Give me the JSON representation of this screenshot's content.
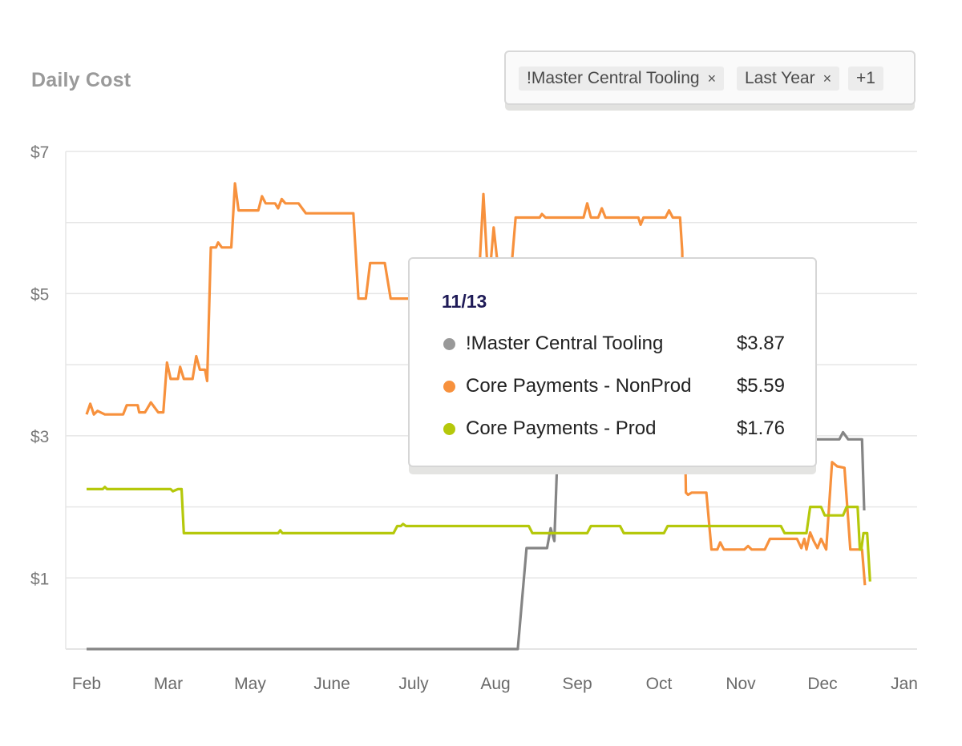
{
  "title": "Daily Cost",
  "filters": {
    "chips": [
      {
        "label": "!Master Central Tooling",
        "remove": "×"
      },
      {
        "label": "Last Year",
        "remove": "×"
      },
      {
        "label": "+1"
      }
    ]
  },
  "tooltip": {
    "date": "11/13",
    "rows": [
      {
        "name": "!Master Central Tooling",
        "value": "$3.87",
        "color": "#999999"
      },
      {
        "name": "Core Payments - NonProd",
        "value": "$5.59",
        "color": "#f7913d"
      },
      {
        "name": "Core Payments - Prod",
        "value": "$1.76",
        "color": "#b5c80b"
      }
    ]
  },
  "chart_data": {
    "type": "line",
    "title": "Daily Cost",
    "xlabel": "",
    "ylabel": "",
    "x_tick_labels": [
      "Feb",
      "Mar",
      "May",
      "June",
      "July",
      "Aug",
      "Sep",
      "Oct",
      "Nov",
      "Dec",
      "Jan"
    ],
    "y_tick_labels": [
      "$7",
      "$5",
      "$3",
      "$1"
    ],
    "y_ticks": [
      7,
      5,
      3,
      1
    ],
    "ylim": [
      0,
      7
    ],
    "xlim": [
      0,
      11
    ],
    "grid": true,
    "series": [
      {
        "name": "!Master Central Tooling",
        "color": "#858585",
        "points": [
          [
            0,
            0
          ],
          [
            5.9,
            0
          ],
          [
            6.02,
            1.42
          ],
          [
            6.3,
            1.42
          ],
          [
            6.35,
            1.7
          ],
          [
            6.4,
            1.52
          ],
          [
            6.45,
            2.95
          ],
          [
            10.3,
            2.95
          ],
          [
            10.35,
            3.05
          ],
          [
            10.42,
            2.95
          ],
          [
            10.61,
            2.95
          ],
          [
            10.64,
            1.95
          ]
        ]
      },
      {
        "name": "Core Payments - NonProd",
        "color": "#f7913d",
        "points": [
          [
            0,
            3.3
          ],
          [
            0.05,
            3.45
          ],
          [
            0.1,
            3.3
          ],
          [
            0.15,
            3.35
          ],
          [
            0.25,
            3.3
          ],
          [
            0.5,
            3.3
          ],
          [
            0.55,
            3.43
          ],
          [
            0.7,
            3.43
          ],
          [
            0.72,
            3.33
          ],
          [
            0.8,
            3.33
          ],
          [
            0.88,
            3.47
          ],
          [
            0.98,
            3.33
          ],
          [
            1.05,
            3.33
          ],
          [
            1.1,
            4.03
          ],
          [
            1.15,
            3.8
          ],
          [
            1.25,
            3.8
          ],
          [
            1.28,
            3.97
          ],
          [
            1.33,
            3.8
          ],
          [
            1.45,
            3.8
          ],
          [
            1.5,
            4.12
          ],
          [
            1.55,
            3.93
          ],
          [
            1.62,
            3.93
          ],
          [
            1.65,
            3.77
          ],
          [
            1.7,
            5.65
          ],
          [
            1.77,
            5.65
          ],
          [
            1.8,
            5.72
          ],
          [
            1.85,
            5.65
          ],
          [
            1.98,
            5.65
          ],
          [
            2.03,
            6.55
          ],
          [
            2.08,
            6.17
          ],
          [
            2.35,
            6.17
          ],
          [
            2.4,
            6.37
          ],
          [
            2.45,
            6.27
          ],
          [
            2.58,
            6.27
          ],
          [
            2.62,
            6.2
          ],
          [
            2.67,
            6.33
          ],
          [
            2.72,
            6.27
          ],
          [
            2.9,
            6.27
          ],
          [
            3.0,
            6.13
          ],
          [
            3.65,
            6.13
          ],
          [
            3.72,
            4.93
          ],
          [
            3.82,
            4.93
          ],
          [
            3.88,
            5.43
          ],
          [
            4.08,
            5.43
          ],
          [
            4.16,
            4.93
          ],
          [
            4.25,
            4.93
          ],
          [
            5.3,
            4.93
          ],
          [
            5.38,
            5.45
          ],
          [
            5.43,
            6.4
          ],
          [
            5.48,
            5.45
          ],
          [
            5.53,
            5.45
          ],
          [
            5.57,
            5.93
          ],
          [
            5.62,
            5.45
          ],
          [
            5.82,
            5.45
          ],
          [
            5.87,
            6.07
          ],
          [
            6.2,
            6.07
          ],
          [
            6.23,
            6.12
          ],
          [
            6.28,
            6.07
          ],
          [
            6.8,
            6.07
          ],
          [
            6.85,
            6.27
          ],
          [
            6.9,
            6.07
          ],
          [
            7.0,
            6.07
          ],
          [
            7.05,
            6.2
          ],
          [
            7.1,
            6.07
          ],
          [
            7.55,
            6.07
          ],
          [
            7.58,
            5.97
          ],
          [
            7.62,
            6.07
          ],
          [
            7.92,
            6.07
          ],
          [
            7.97,
            6.17
          ],
          [
            8.02,
            6.07
          ],
          [
            8.12,
            6.07
          ],
          [
            8.15,
            5.6
          ],
          [
            8.2,
            2.2
          ],
          [
            8.23,
            2.17
          ],
          [
            8.28,
            2.2
          ],
          [
            8.48,
            2.2
          ],
          [
            8.55,
            1.4
          ],
          [
            8.63,
            1.4
          ],
          [
            8.67,
            1.5
          ],
          [
            8.72,
            1.4
          ],
          [
            9.0,
            1.4
          ],
          [
            9.05,
            1.45
          ],
          [
            9.1,
            1.4
          ],
          [
            9.28,
            1.4
          ],
          [
            9.35,
            1.55
          ],
          [
            9.72,
            1.55
          ],
          [
            9.78,
            1.42
          ],
          [
            9.82,
            1.55
          ],
          [
            9.85,
            1.4
          ],
          [
            9.9,
            1.64
          ],
          [
            9.95,
            1.52
          ],
          [
            10.0,
            1.42
          ],
          [
            10.05,
            1.55
          ],
          [
            10.12,
            1.4
          ],
          [
            10.2,
            2.63
          ],
          [
            10.27,
            2.57
          ],
          [
            10.37,
            2.55
          ],
          [
            10.45,
            1.4
          ],
          [
            10.58,
            1.4
          ],
          [
            10.61,
            1.4
          ],
          [
            10.65,
            0.9
          ]
        ]
      },
      {
        "name": "Core Payments - Prod",
        "color": "#b5c80b",
        "points": [
          [
            0,
            2.25
          ],
          [
            0.22,
            2.25
          ],
          [
            0.25,
            2.28
          ],
          [
            0.28,
            2.25
          ],
          [
            1.15,
            2.25
          ],
          [
            1.18,
            2.22
          ],
          [
            1.25,
            2.25
          ],
          [
            1.3,
            2.25
          ],
          [
            1.33,
            1.63
          ],
          [
            2.62,
            1.63
          ],
          [
            2.65,
            1.67
          ],
          [
            2.68,
            1.63
          ],
          [
            4.2,
            1.63
          ],
          [
            4.25,
            1.73
          ],
          [
            4.3,
            1.73
          ],
          [
            4.33,
            1.76
          ],
          [
            4.37,
            1.73
          ],
          [
            6.05,
            1.73
          ],
          [
            6.1,
            1.63
          ],
          [
            6.85,
            1.63
          ],
          [
            6.9,
            1.73
          ],
          [
            7.3,
            1.73
          ],
          [
            7.35,
            1.63
          ],
          [
            7.9,
            1.63
          ],
          [
            7.95,
            1.73
          ],
          [
            9.5,
            1.73
          ],
          [
            9.55,
            1.63
          ],
          [
            9.85,
            1.63
          ],
          [
            9.9,
            2.0
          ],
          [
            10.05,
            2.0
          ],
          [
            10.1,
            1.88
          ],
          [
            10.35,
            1.88
          ],
          [
            10.4,
            2.0
          ],
          [
            10.55,
            2.0
          ],
          [
            10.58,
            1.4
          ],
          [
            10.6,
            1.4
          ],
          [
            10.63,
            1.63
          ],
          [
            10.68,
            1.63
          ],
          [
            10.72,
            0.95
          ]
        ]
      }
    ]
  }
}
